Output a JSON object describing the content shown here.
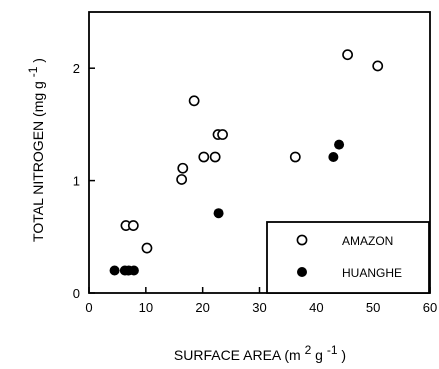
{
  "chart_data": {
    "type": "scatter",
    "title": "",
    "xlabel": "SURFACE AREA (m",
    "xlabel_sup1": "2",
    "xlabel_mid": "g",
    "xlabel_sup2": "-1",
    "xlabel_end": ")",
    "ylabel": "TOTAL NITROGEN (mg g",
    "ylabel_sup": "-1",
    "ylabel_end": ")",
    "xlim": [
      0,
      60
    ],
    "ylim": [
      0,
      2.5
    ],
    "x_ticks": [
      0,
      10,
      20,
      30,
      40,
      50,
      60
    ],
    "y_ticks": [
      0,
      1,
      2
    ],
    "grid": false,
    "legend_position": "bottom-right",
    "series": [
      {
        "name": "AMAZON",
        "marker": "open-circle",
        "x": [
          6.5,
          7.8,
          10.2,
          16.3,
          16.5,
          18.5,
          20.2,
          22.2,
          22.7,
          23.5,
          36.3,
          45.5,
          50.8
        ],
        "y": [
          0.6,
          0.6,
          0.4,
          1.01,
          1.11,
          1.71,
          1.21,
          1.21,
          1.41,
          1.41,
          1.21,
          2.12,
          2.02
        ]
      },
      {
        "name": "HUANGHE",
        "marker": "filled-circle",
        "x": [
          4.5,
          6.3,
          7.0,
          7.9,
          22.8,
          43.0,
          44.0
        ],
        "y": [
          0.2,
          0.2,
          0.2,
          0.2,
          0.71,
          1.21,
          1.32
        ]
      }
    ]
  }
}
